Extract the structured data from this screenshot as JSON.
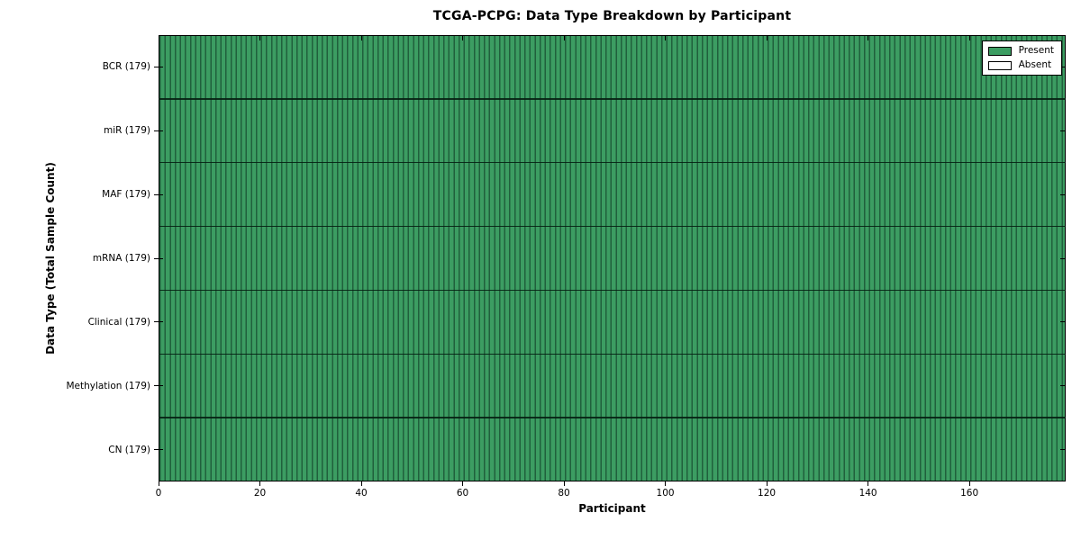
{
  "chart_data": {
    "type": "heatmap",
    "title": "TCGA-PCPG: Data Type Breakdown by Participant",
    "xlabel": "Participant",
    "ylabel": "Data Type (Total Sample Count)",
    "xlim": [
      0,
      179
    ],
    "x_ticks": [
      0,
      20,
      40,
      60,
      80,
      100,
      120,
      140,
      160
    ],
    "n_participants": 179,
    "categories": [
      "BCR (179)",
      "miR (179)",
      "MAF (179)",
      "mRNA (179)",
      "Clinical (179)",
      "Methylation (179)",
      "CN (179)"
    ],
    "rows": [
      {
        "label": "BCR (179)",
        "data_type": "BCR",
        "total_sample_count": 179,
        "present": 179,
        "absent": 0
      },
      {
        "label": "miR (179)",
        "data_type": "miR",
        "total_sample_count": 179,
        "present": 179,
        "absent": 0
      },
      {
        "label": "MAF (179)",
        "data_type": "MAF",
        "total_sample_count": 179,
        "present": 179,
        "absent": 0
      },
      {
        "label": "mRNA (179)",
        "data_type": "mRNA",
        "total_sample_count": 179,
        "present": 179,
        "absent": 0
      },
      {
        "label": "Clinical (179)",
        "data_type": "Clinical",
        "total_sample_count": 179,
        "present": 179,
        "absent": 0
      },
      {
        "label": "Methylation (179)",
        "data_type": "Methylation",
        "total_sample_count": 179,
        "present": 179,
        "absent": 0
      },
      {
        "label": "CN (179)",
        "data_type": "CN",
        "total_sample_count": 179,
        "present": 179,
        "absent": 0
      }
    ],
    "cells": "every participant column is Present (green) for all 7 data type rows",
    "legend": {
      "position": "upper right",
      "entries": [
        {
          "label": "Present",
          "color": "#3c9d62"
        },
        {
          "label": "Absent",
          "color": "#ffffff"
        }
      ]
    },
    "grid": "black cell edge lines between participant columns and between data type rows"
  },
  "colors": {
    "present": "#3c9d62",
    "present_edge": "#20603c",
    "absent": "#ffffff",
    "axis": "#000000",
    "background": "#ffffff"
  }
}
